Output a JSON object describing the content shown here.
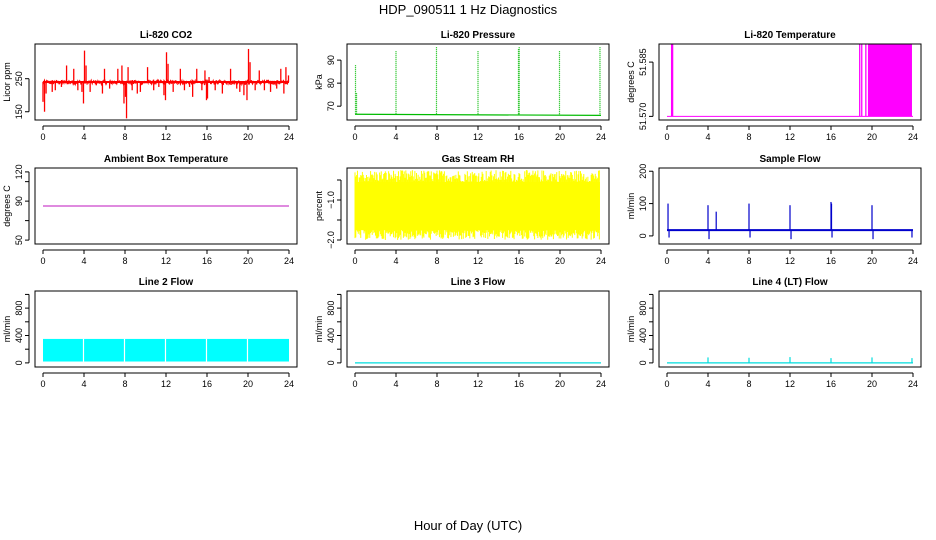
{
  "figure": {
    "title": "HDP_090511  1 Hz Diagnostics",
    "xlabel": "Hour of Day (UTC)"
  },
  "chart_data": [
    {
      "type": "line",
      "title": "Li-820 CO2",
      "ylabel": "Licor ppm",
      "color": "#ff0000",
      "xlim": [
        0,
        24
      ],
      "xticks": [
        0,
        4,
        8,
        12,
        16,
        20,
        24
      ],
      "ylim": [
        125,
        355
      ],
      "yticks": [
        150,
        250
      ],
      "baseline": 240,
      "band": [
        232,
        246
      ],
      "spikes": [
        [
          0.0,
          180
        ],
        [
          0.15,
          150
        ],
        [
          0.3,
          205
        ],
        [
          0.9,
          210
        ],
        [
          1.2,
          215
        ],
        [
          1.8,
          225
        ],
        [
          2.3,
          290
        ],
        [
          3.0,
          280
        ],
        [
          3.4,
          215
        ],
        [
          3.8,
          210
        ],
        [
          3.95,
          175
        ],
        [
          4.05,
          335
        ],
        [
          4.2,
          290
        ],
        [
          4.6,
          210
        ],
        [
          5.2,
          230
        ],
        [
          5.8,
          205
        ],
        [
          6.0,
          280
        ],
        [
          6.5,
          220
        ],
        [
          7.3,
          280
        ],
        [
          7.7,
          290
        ],
        [
          7.9,
          175
        ],
        [
          8.05,
          195
        ],
        [
          8.15,
          130
        ],
        [
          8.3,
          285
        ],
        [
          8.7,
          215
        ],
        [
          9.2,
          205
        ],
        [
          9.5,
          210
        ],
        [
          10.2,
          285
        ],
        [
          10.8,
          215
        ],
        [
          11.3,
          225
        ],
        [
          11.8,
          200
        ],
        [
          11.95,
          185
        ],
        [
          12.05,
          330
        ],
        [
          12.2,
          295
        ],
        [
          12.7,
          210
        ],
        [
          13.4,
          280
        ],
        [
          13.8,
          215
        ],
        [
          14.3,
          225
        ],
        [
          14.6,
          195
        ],
        [
          15.0,
          280
        ],
        [
          15.5,
          215
        ],
        [
          15.8,
          275
        ],
        [
          15.95,
          185
        ],
        [
          16.05,
          190
        ],
        [
          16.2,
          255
        ],
        [
          16.8,
          215
        ],
        [
          17.5,
          205
        ],
        [
          18.3,
          280
        ],
        [
          18.9,
          220
        ],
        [
          19.2,
          210
        ],
        [
          19.6,
          200
        ],
        [
          19.9,
          185
        ],
        [
          20.05,
          340
        ],
        [
          20.2,
          300
        ],
        [
          20.7,
          215
        ],
        [
          21.1,
          275
        ],
        [
          21.6,
          215
        ],
        [
          22.2,
          210
        ],
        [
          22.8,
          220
        ],
        [
          23.2,
          280
        ],
        [
          23.5,
          205
        ],
        [
          23.7,
          285
        ],
        [
          23.95,
          260
        ]
      ]
    },
    {
      "type": "line",
      "title": "Li-820 Pressure",
      "ylabel": "kPa",
      "color": "#00bb00",
      "xlim": [
        0,
        24
      ],
      "xticks": [
        0,
        4,
        8,
        12,
        16,
        20,
        24
      ],
      "ylim": [
        64,
        97
      ],
      "yticks": [
        70,
        80,
        90
      ],
      "baseline": 66.5,
      "baseline_end": 66.0,
      "spikes": [
        [
          0.05,
          88
        ],
        [
          0.15,
          76
        ],
        [
          4.0,
          94
        ],
        [
          7.95,
          96
        ],
        [
          12.0,
          94
        ],
        [
          15.95,
          95
        ],
        [
          16.02,
          96
        ],
        [
          19.95,
          94
        ],
        [
          23.9,
          96
        ]
      ]
    },
    {
      "type": "area",
      "title": "Li-820 Temperature",
      "ylabel": "degrees C",
      "color": "#ff00ff",
      "xlim": [
        0,
        24
      ],
      "xticks": [
        0,
        4,
        8,
        12,
        16,
        20,
        24
      ],
      "ylim": [
        51.569,
        51.59
      ],
      "yticks": [
        51.57,
        51.585
      ],
      "ytick_labels": [
        "51.570",
        "51.585"
      ],
      "baseline": 51.57,
      "high": 51.59,
      "high_lines": [
        0.45,
        0.55,
        18.8,
        19.0,
        19.4
      ],
      "filled_range": [
        19.6,
        23.9
      ]
    },
    {
      "type": "line",
      "title": "Ambient Box Temperature",
      "ylabel": "degrees C",
      "color": "#cc44cc",
      "xlim": [
        0,
        24
      ],
      "xticks": [
        0,
        4,
        8,
        12,
        16,
        20,
        24
      ],
      "ylim": [
        46,
        124
      ],
      "yticks": [
        50,
        70,
        90,
        110,
        120
      ],
      "ytick_labels": [
        "50",
        "",
        "90",
        "",
        "120"
      ],
      "baseline": 85
    },
    {
      "type": "area",
      "title": "Gas Stream RH",
      "ylabel": "percent",
      "color": "#ffff00",
      "xlim": [
        0,
        24
      ],
      "xticks": [
        0,
        4,
        8,
        12,
        16,
        20,
        24
      ],
      "ylim": [
        -2.1,
        -0.2
      ],
      "yticks": [
        -2.0,
        -1.5,
        -1.0,
        -0.5
      ],
      "ytick_labels": [
        "−2.0",
        "",
        "−1.0",
        ""
      ],
      "band": [
        -1.75,
        -0.55
      ],
      "noise_max": -0.25,
      "noise_min": -2.0
    },
    {
      "type": "line",
      "title": "Sample Flow",
      "ylabel": "ml/min",
      "color": "#0000cc",
      "xlim": [
        0,
        24
      ],
      "xticks": [
        0,
        4,
        8,
        12,
        16,
        20,
        24
      ],
      "ylim": [
        -25,
        210
      ],
      "yticks": [
        0,
        100,
        200
      ],
      "baseline": 18,
      "spikes": [
        [
          0.1,
          100
        ],
        [
          0.2,
          -5
        ],
        [
          4.0,
          95
        ],
        [
          4.1,
          -10
        ],
        [
          4.8,
          75
        ],
        [
          8.0,
          100
        ],
        [
          8.1,
          -5
        ],
        [
          12.0,
          95
        ],
        [
          12.1,
          -10
        ],
        [
          16.0,
          105
        ],
        [
          16.05,
          100
        ],
        [
          16.1,
          -5
        ],
        [
          20.0,
          95
        ],
        [
          20.1,
          -10
        ],
        [
          23.9,
          -5
        ]
      ]
    },
    {
      "type": "area",
      "title": "Line 2 Flow",
      "ylabel": "ml/min",
      "color": "#00ffff",
      "xlim": [
        0,
        24
      ],
      "xticks": [
        0,
        4,
        8,
        12,
        16,
        20,
        24
      ],
      "ylim": [
        -60,
        1050
      ],
      "yticks": [
        0,
        200,
        400,
        600,
        800,
        1000
      ],
      "ytick_labels": [
        "0",
        "",
        "400",
        "",
        "800",
        ""
      ],
      "band": [
        20,
        350
      ],
      "gaps": [
        3.95,
        7.95,
        11.95,
        15.95,
        19.95
      ]
    },
    {
      "type": "line",
      "title": "Line 3 Flow",
      "ylabel": "ml/min",
      "color": "#00dddd",
      "xlim": [
        0,
        24
      ],
      "xticks": [
        0,
        4,
        8,
        12,
        16,
        20,
        24
      ],
      "ylim": [
        -60,
        1050
      ],
      "yticks": [
        0,
        200,
        400,
        600,
        800,
        1000
      ],
      "ytick_labels": [
        "0",
        "",
        "400",
        "",
        "800",
        ""
      ],
      "baseline": 0
    },
    {
      "type": "line",
      "title": "Line 4 (LT) Flow",
      "ylabel": "ml/min",
      "color": "#00dddd",
      "xlim": [
        0,
        24
      ],
      "xticks": [
        0,
        4,
        8,
        12,
        16,
        20,
        24
      ],
      "ylim": [
        -60,
        1050
      ],
      "yticks": [
        0,
        200,
        400,
        600,
        800,
        1000
      ],
      "ytick_labels": [
        "0",
        "",
        "400",
        "",
        "800",
        ""
      ],
      "baseline": 0,
      "spikes": [
        [
          4.0,
          80
        ],
        [
          8.0,
          75
        ],
        [
          12.0,
          85
        ],
        [
          16.0,
          70
        ],
        [
          20.0,
          80
        ],
        [
          23.9,
          70
        ]
      ]
    }
  ]
}
